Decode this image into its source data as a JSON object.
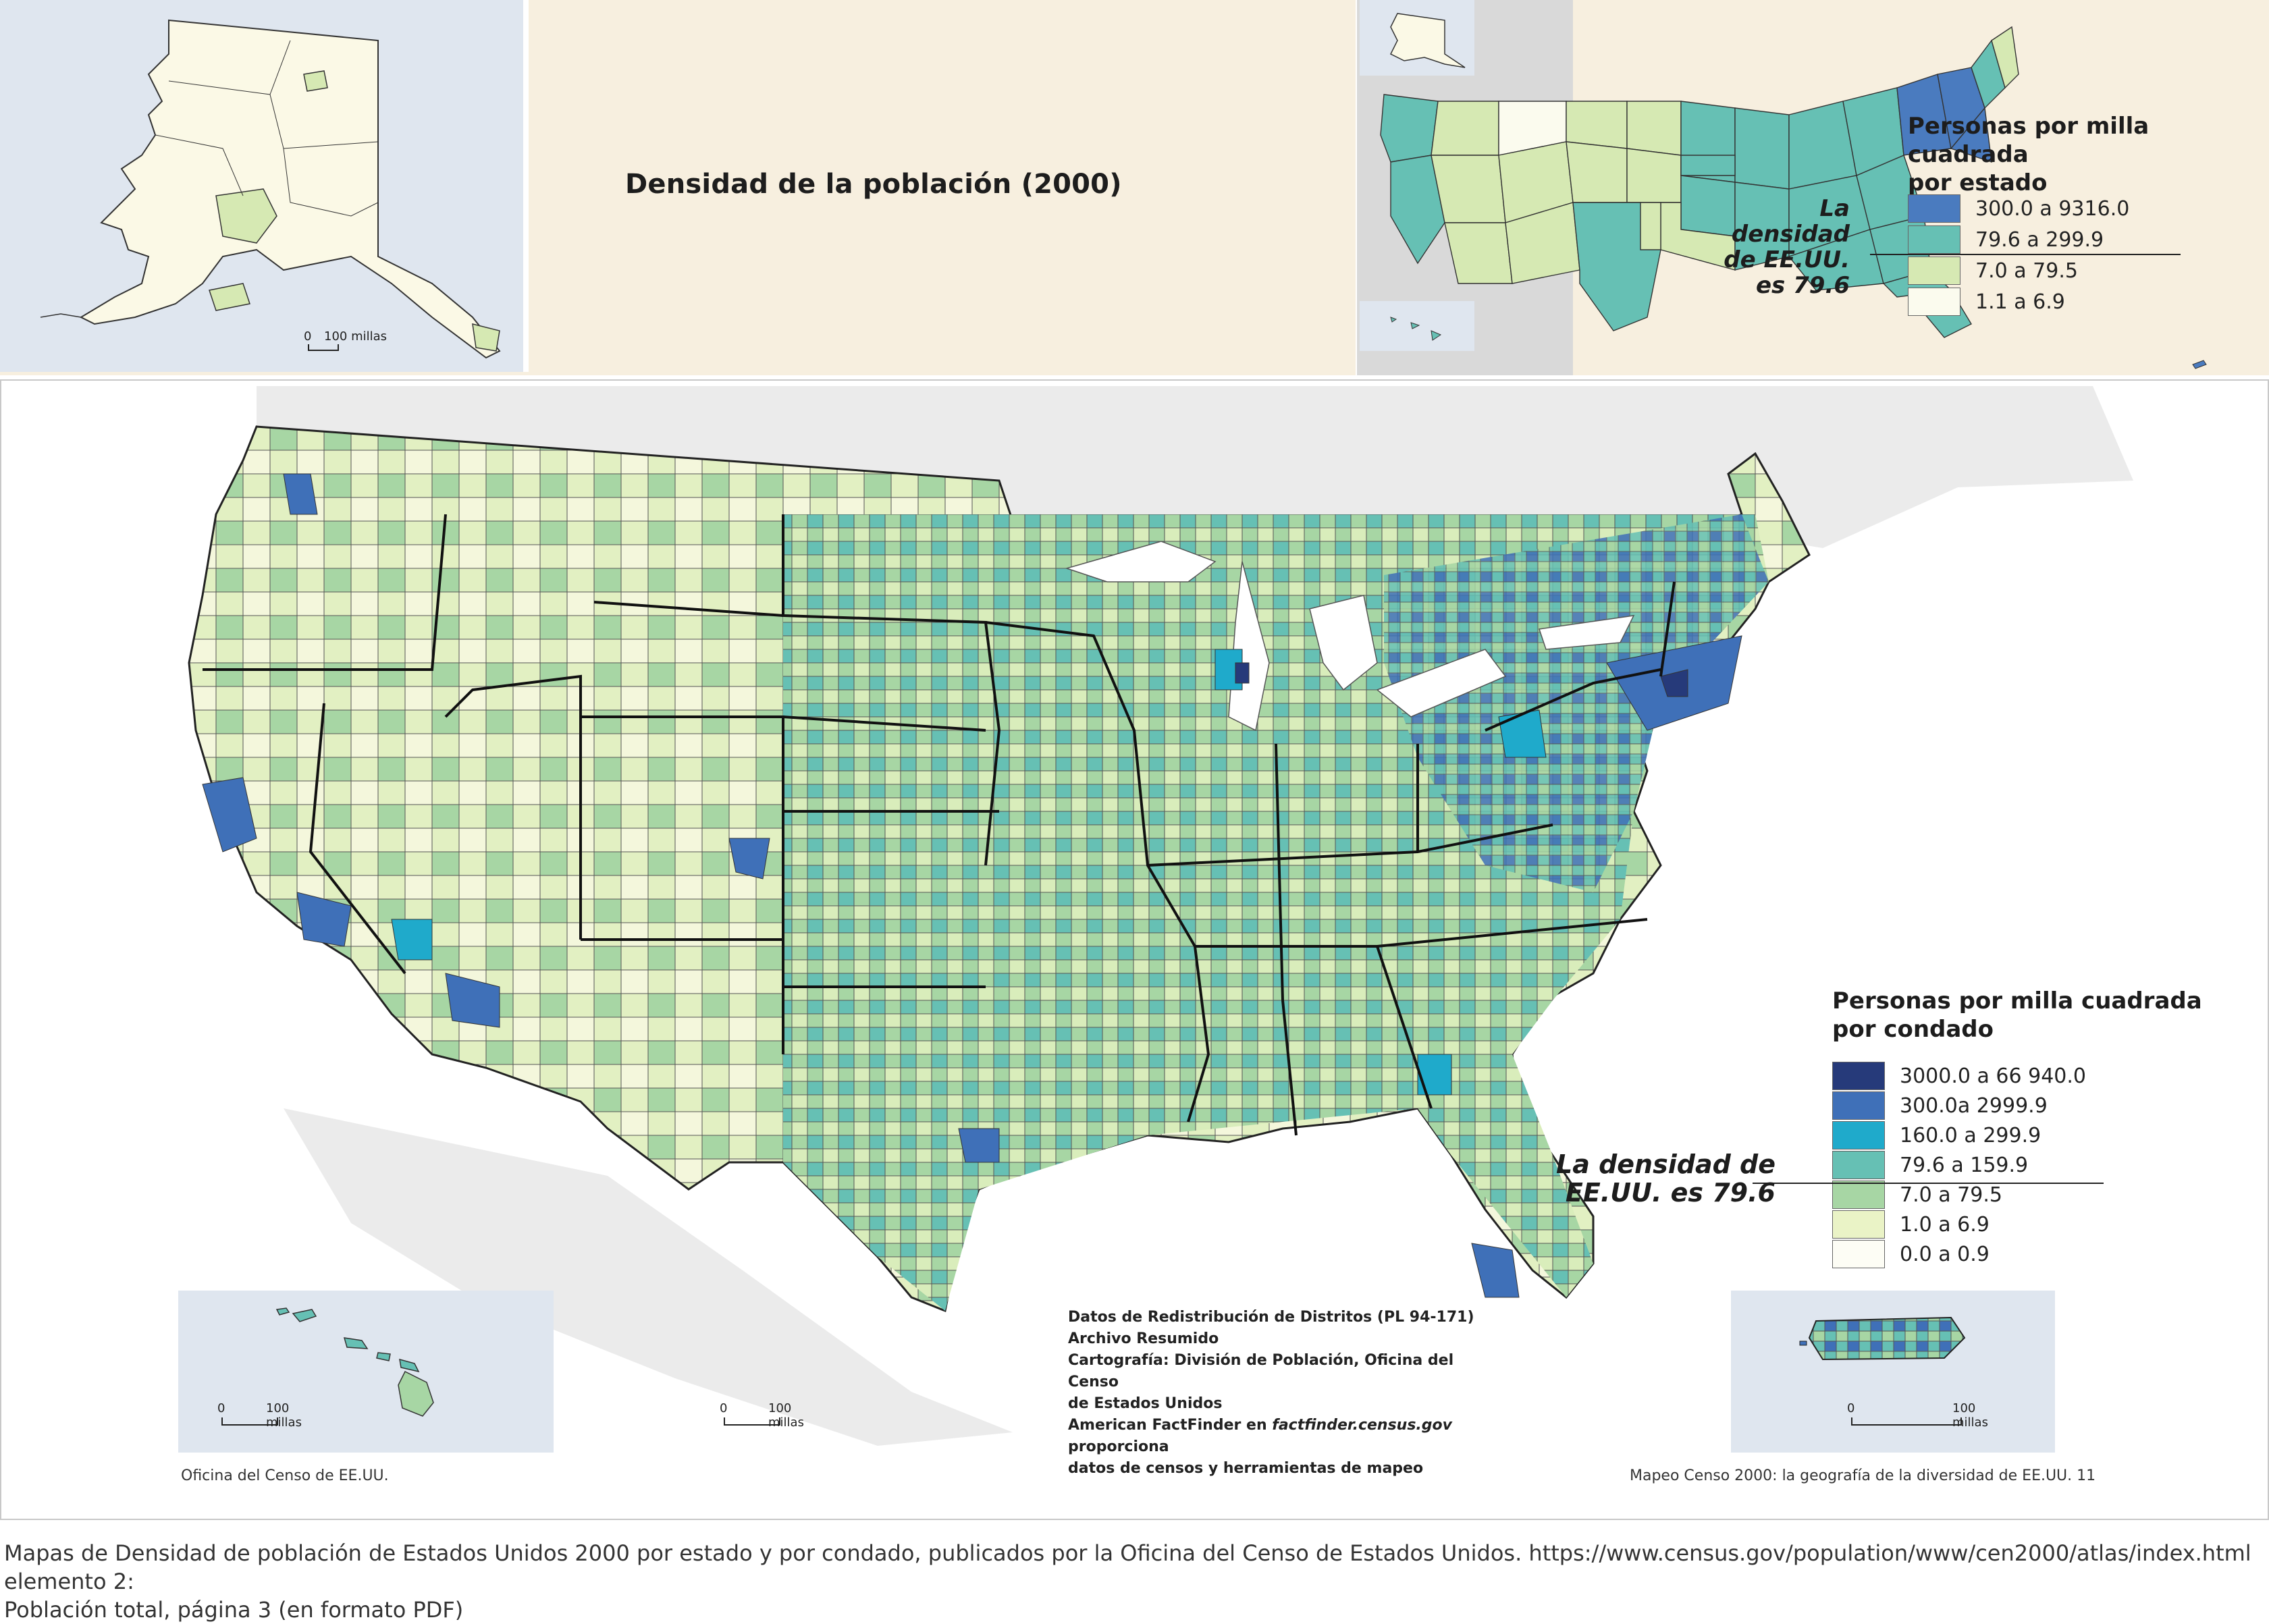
{
  "title": "Densidad de la población (2000)",
  "alaska_scale": {
    "zero": "0",
    "label": "100 millas"
  },
  "state_legend": {
    "title_line1": "Personas por milla cuadrada",
    "title_line2": "por estado",
    "avg_line1": "La",
    "avg_line2": "densidad",
    "avg_line3": "de EE.UU.",
    "avg_line4": "es 79.6",
    "rows": [
      {
        "label": "300.0 a 9316.0",
        "color": "#4a7bbf"
      },
      {
        "label": "79.6 a   299.9",
        "color": "#66c0b4"
      },
      {
        "label": "7.0 a     79.5",
        "color": "#d6e9b3"
      },
      {
        "label": "1.1 a       6.9",
        "color": "#fbfbee"
      }
    ]
  },
  "county_legend": {
    "title_line1": "Personas por milla cuadrada",
    "title_line2": "por condado",
    "avg_line1": "La densidad de",
    "avg_line2": "EE.UU. es 79.6",
    "rows": [
      {
        "label": "3000.0 a 66 940.0",
        "color": "#263a7a"
      },
      {
        "label": "300.0a    2999.9",
        "color": "#3f70b8"
      },
      {
        "label": "160.0 a     299.9",
        "color": "#1faacb"
      },
      {
        "label": "79.6 a     159.9",
        "color": "#66c0b4"
      },
      {
        "label": "7.0 a       79.5",
        "color": "#a7d6a4"
      },
      {
        "label": "1.0 a         6.9",
        "color": "#eaf3c6"
      },
      {
        "label": "0.0 a         0.9",
        "color": "#fdfdf5"
      }
    ]
  },
  "hawaii_scale": {
    "zero": "0",
    "label": "100 millas"
  },
  "main_scale": {
    "zero": "0",
    "label": "100 millas"
  },
  "pr_scale": {
    "zero": "0",
    "label": "100 millas"
  },
  "source_note": {
    "line1": "Datos de Redistribución de Distritos (PL 94-171)",
    "line2": "Archivo Resumido",
    "line3": "Cartografía: División de Población, Oficina del Censo",
    "line4": "de Estados Unidos",
    "line5a": "American FactFinder en ",
    "line5b": "factfinder.census.gov",
    "line5c": " proporciona",
    "line6": "datos de censos y herramientas de mapeo"
  },
  "footer_left": "Oficina del Censo de EE.UU.",
  "footer_right": "Mapeo Censo 2000: la geografía de la diversidad de EE.UU. 11",
  "caption_line1": "Mapas de Densidad de población de Estados Unidos 2000 por estado y por condado, publicados por la Oficina del Censo de Estados Unidos. https://www.census.gov/population/www/cen2000/atlas/index.html elemento 2:",
  "caption_line2": "Población total, página 3 (en formato PDF)"
}
